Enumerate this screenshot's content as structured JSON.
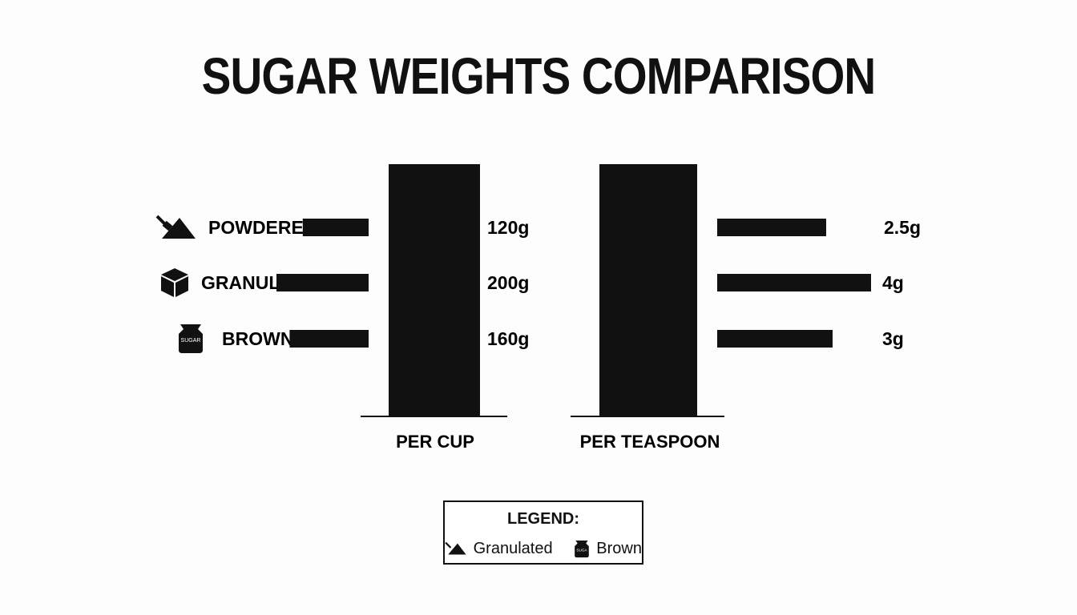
{
  "chart_data": {
    "type": "bar",
    "title": "SUGAR WEIGHTS COMPARISON",
    "categories": [
      "POWDERED",
      "GRANULATED",
      "BROWN"
    ],
    "category_icons": [
      "powdered-sugar-icon",
      "sugar-cube-icon",
      "sugar-bag-icon"
    ],
    "groups": [
      {
        "label": "PER CUP",
        "unit": "g",
        "values": [
          120,
          200,
          160
        ],
        "value_labels": [
          "120g",
          "200g",
          "160g"
        ]
      },
      {
        "label": "PER TEASPOON",
        "unit": "g",
        "values": [
          2.5,
          4,
          3
        ],
        "value_labels": [
          "2.5g",
          "4g",
          "3g"
        ]
      }
    ],
    "legend": {
      "title": "LEGEND:",
      "items": [
        {
          "label": "Granulated",
          "icon": "powdered-sugar-icon"
        },
        {
          "label": "Brown",
          "icon": "sugar-bag-icon"
        }
      ]
    },
    "colors": {
      "bars": "#111111",
      "background": "#fdfdfd"
    }
  },
  "icon_text": {
    "sugar_bag": "SUGAR",
    "legend_bag": "SUGA"
  }
}
